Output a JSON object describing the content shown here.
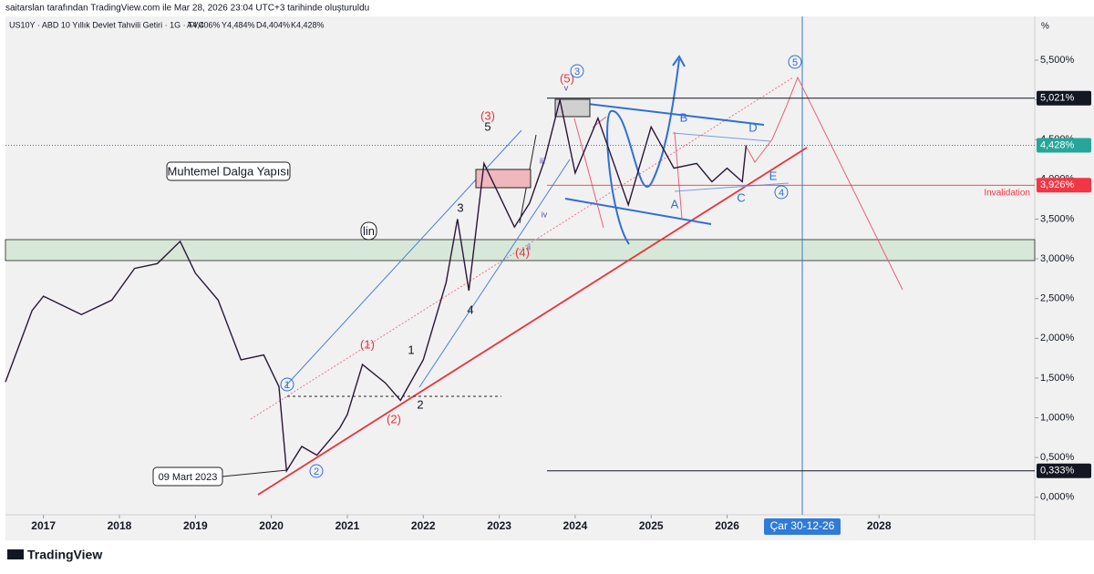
{
  "header": {
    "credit": "saitarslan tarafından TradingView.com ile Mar 28, 2026 23:04 UTC+3 tarihinde oluşturuldu",
    "symbol": "US10Y · ABD 10 Yıllık Devlet Tahvili Getiri · 1G · TVC",
    "ohlc": [
      "A4,406%",
      "Y4,484%",
      "D4,404%",
      "K4,428%"
    ]
  },
  "chart_data": {
    "type": "line",
    "y_unit": "%",
    "xlim": [
      2016.5,
      2030.05
    ],
    "xticks": [
      2017,
      2018,
      2019,
      2020,
      2021,
      2022,
      2023,
      2024,
      2025,
      2026,
      2028
    ],
    "ylim": [
      -0.22,
      6.05
    ],
    "yticks": [
      {
        "value": 0,
        "label": "0,000%"
      },
      {
        "value": 0.5,
        "label": "0,500%"
      },
      {
        "value": 1,
        "label": "1,000%"
      },
      {
        "value": 1.5,
        "label": "1,500%"
      },
      {
        "value": 2,
        "label": "2,000%"
      },
      {
        "value": 2.5,
        "label": "2,500%"
      },
      {
        "value": 3,
        "label": "3,000%"
      },
      {
        "value": 3.5,
        "label": "3,500%"
      },
      {
        "value": 4,
        "label": "4,000%"
      },
      {
        "value": 4.5,
        "label": "4,500%"
      },
      {
        "value": 5,
        "label": "5,000%"
      },
      {
        "value": 5.5,
        "label": "5,500%"
      }
    ],
    "grid": false,
    "series": [
      {
        "name": "US10Y",
        "color": "#2a1638",
        "x": [
          2016.5,
          2016.85,
          2017.0,
          2017.5,
          2017.9,
          2018.2,
          2018.5,
          2018.8,
          2019.0,
          2019.3,
          2019.6,
          2019.9,
          2020.1,
          2020.2,
          2020.4,
          2020.6,
          2020.9,
          2021.0,
          2021.2,
          2021.5,
          2021.7,
          2022.0,
          2022.3,
          2022.45,
          2022.6,
          2022.8,
          2023.0,
          2023.2,
          2023.4,
          2023.6,
          2023.8,
          2024.0,
          2024.3,
          2024.7,
          2025.0,
          2025.3,
          2025.6,
          2025.8,
          2026.0,
          2026.2,
          2026.25
        ],
        "values": [
          1.45,
          2.35,
          2.53,
          2.3,
          2.48,
          2.88,
          2.94,
          3.22,
          2.82,
          2.48,
          1.73,
          1.79,
          1.39,
          0.333,
          0.64,
          0.53,
          0.87,
          1.04,
          1.67,
          1.44,
          1.22,
          1.73,
          2.7,
          3.5,
          2.6,
          4.2,
          3.8,
          3.4,
          3.7,
          4.25,
          5.0,
          4.08,
          4.77,
          3.68,
          4.66,
          4.14,
          4.2,
          3.97,
          4.14,
          3.97,
          4.428
        ]
      }
    ],
    "price_labels": [
      {
        "value": 5.021,
        "label": "5,021%",
        "color": "#131722"
      },
      {
        "value": 4.428,
        "label": "4,428%",
        "color": "#26a69a"
      },
      {
        "value": 3.926,
        "label": "3,926%",
        "color": "#f23645"
      },
      {
        "value": 0.333,
        "label": "0,333%",
        "color": "#131722"
      }
    ],
    "date_label": "Çar 30-12-26",
    "annotations": [
      "(1)",
      "(2)",
      "(3)",
      "(4)",
      "(5)",
      "1",
      "2",
      "3",
      "4",
      "5",
      "A",
      "B",
      "C",
      "D",
      "E",
      "iii",
      "iv",
      "ii",
      "v",
      "Invalidation"
    ],
    "boxed_labels": [
      "Muhtemel Dalga Yapısı",
      "lin",
      "09 Mart 2023"
    ],
    "circled_labels": [
      "1",
      "2",
      "3",
      "4",
      "5"
    ]
  },
  "footer": {
    "logo": "TradingView"
  }
}
